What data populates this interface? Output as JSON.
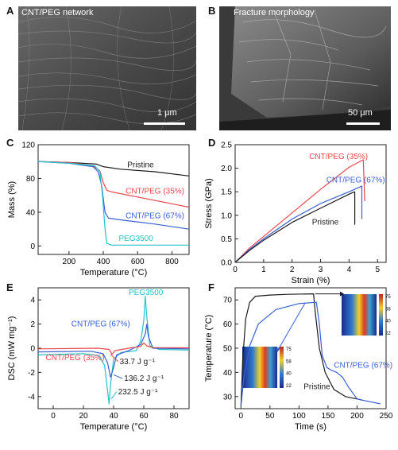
{
  "panels": {
    "A": {
      "letter": "A",
      "label": "CNT/PEG network",
      "scale_label": "1 μm"
    },
    "B": {
      "letter": "B",
      "label": "Fracture morphology",
      "scale_label": "50 μm"
    },
    "C": {
      "letter": "C"
    },
    "D": {
      "letter": "D"
    },
    "E": {
      "letter": "E"
    },
    "F": {
      "letter": "F"
    }
  },
  "colors": {
    "pristine": "#1a1a1a",
    "cnt35": "#e8474f",
    "cnt67": "#3a5fd1",
    "peg": "#22c3c9"
  },
  "chart_data": [
    {
      "id": "C",
      "type": "line",
      "xlabel": "Temperature (°C)",
      "ylabel": "Mass (%)",
      "xlim": [
        20,
        900
      ],
      "ylim": [
        -10,
        120
      ],
      "xticks": [
        200,
        400,
        600,
        800
      ],
      "yticks": [
        0,
        40,
        80,
        120
      ],
      "series": [
        {
          "name": "Pristine",
          "color": "#1a1a1a",
          "points": [
            [
              20,
              100
            ],
            [
              200,
              99
            ],
            [
              360,
              97
            ],
            [
              400,
              94
            ],
            [
              500,
              91
            ],
            [
              700,
              88
            ],
            [
              900,
              83
            ]
          ]
        },
        {
          "name": "CNT/PEG (35%)",
          "color": "#e8474f",
          "points": [
            [
              20,
              100
            ],
            [
              200,
              99
            ],
            [
              340,
              95
            ],
            [
              380,
              89
            ],
            [
              400,
              75
            ],
            [
              420,
              66
            ],
            [
              450,
              64
            ],
            [
              600,
              58
            ],
            [
              800,
              50
            ],
            [
              900,
              46
            ]
          ]
        },
        {
          "name": "CNT/PEG (67%)",
          "color": "#3a5fd1",
          "points": [
            [
              20,
              100
            ],
            [
              200,
              98
            ],
            [
              340,
              94
            ],
            [
              370,
              88
            ],
            [
              390,
              72
            ],
            [
              410,
              40
            ],
            [
              430,
              33
            ],
            [
              500,
              31
            ],
            [
              700,
              26
            ],
            [
              900,
              20
            ]
          ]
        },
        {
          "name": "PEG3500",
          "color": "#22c3c9",
          "points": [
            [
              20,
              100
            ],
            [
              200,
              98
            ],
            [
              350,
              95
            ],
            [
              380,
              88
            ],
            [
              395,
              60
            ],
            [
              410,
              20
            ],
            [
              420,
              3
            ],
            [
              450,
              1
            ],
            [
              900,
              1
            ]
          ]
        }
      ],
      "annotations": [
        {
          "text": "Pristine",
          "color": "#1a1a1a",
          "x": 540,
          "y": 93
        },
        {
          "text": "CNT/PEG (35%)",
          "color": "#e8474f",
          "x": 530,
          "y": 62
        },
        {
          "text": "CNT/PEG (67%)",
          "color": "#3a5fd1",
          "x": 530,
          "y": 33
        },
        {
          "text": "PEG3500",
          "color": "#22c3c9",
          "x": 490,
          "y": 6
        }
      ]
    },
    {
      "id": "D",
      "type": "line",
      "xlabel": "Strain (%)",
      "ylabel": "Stress (GPa)",
      "xlim": [
        0,
        5.3
      ],
      "ylim": [
        0,
        2.5
      ],
      "xticks": [
        0,
        1,
        2,
        3,
        4,
        5
      ],
      "yticks": [
        0.0,
        0.5,
        1.0,
        1.5,
        2.0,
        2.5
      ],
      "tick_format": {
        "y": 1
      },
      "series": [
        {
          "name": "CNT/PEG (35%)",
          "color": "#e8474f",
          "points": [
            [
              0,
              0
            ],
            [
              0.5,
              0.3
            ],
            [
              1,
              0.55
            ],
            [
              2,
              1.05
            ],
            [
              3,
              1.55
            ],
            [
              4,
              2.02
            ],
            [
              4.5,
              2.18
            ],
            [
              4.55,
              1.3
            ]
          ]
        },
        {
          "name": "CNT/PEG (67%)",
          "color": "#3a5fd1",
          "points": [
            [
              0,
              0
            ],
            [
              0.5,
              0.27
            ],
            [
              1,
              0.5
            ],
            [
              2,
              0.92
            ],
            [
              3,
              1.25
            ],
            [
              4,
              1.5
            ],
            [
              4.45,
              1.62
            ],
            [
              4.45,
              0.92
            ]
          ]
        },
        {
          "name": "Pristine",
          "color": "#1a1a1a",
          "points": [
            [
              0,
              0
            ],
            [
              0.5,
              0.25
            ],
            [
              1,
              0.47
            ],
            [
              2,
              0.85
            ],
            [
              3,
              1.15
            ],
            [
              4,
              1.45
            ],
            [
              4.2,
              1.5
            ],
            [
              4.2,
              0.8
            ]
          ]
        }
      ],
      "annotations": [
        {
          "text": "CNT/PEG (35%)",
          "color": "#e8474f",
          "x": 2.6,
          "y": 2.2
        },
        {
          "text": "CNT/PEG (67%)",
          "color": "#3a5fd1",
          "x": 3.2,
          "y": 1.7
        },
        {
          "text": "Pristine",
          "color": "#1a1a1a",
          "x": 2.7,
          "y": 0.8
        }
      ]
    },
    {
      "id": "E",
      "type": "line",
      "xlabel": "Temperature (°C)",
      "ylabel": "DSC (mW mg⁻¹)",
      "xlim": [
        -10,
        90
      ],
      "ylim": [
        -5,
        5
      ],
      "xticks": [
        0,
        20,
        40,
        60,
        80
      ],
      "yticks": [
        -4,
        -2,
        0,
        2,
        4
      ],
      "series": [
        {
          "name": "PEG3500",
          "color": "#22c3c9",
          "points": [
            [
              -10,
              -0.55
            ],
            [
              20,
              -0.45
            ],
            [
              30,
              -0.6
            ],
            [
              34,
              -1.4
            ],
            [
              36,
              -3.5
            ],
            [
              37,
              -4.6
            ],
            [
              38,
              -3.0
            ],
            [
              40,
              -0.9
            ],
            [
              45,
              -0.35
            ],
            [
              55,
              -0.2
            ],
            [
              58,
              0.6
            ],
            [
              60,
              2.3
            ],
            [
              61,
              4.3
            ],
            [
              62,
              2.6
            ],
            [
              64,
              0.2
            ],
            [
              70,
              -0.1
            ],
            [
              90,
              -0.15
            ]
          ]
        },
        {
          "name": "CNT/PEG (67%)",
          "color": "#3a5fd1",
          "points": [
            [
              -10,
              -0.3
            ],
            [
              25,
              -0.25
            ],
            [
              33,
              -0.45
            ],
            [
              36,
              -1.2
            ],
            [
              38,
              -2.4
            ],
            [
              40,
              -1.6
            ],
            [
              42,
              -0.55
            ],
            [
              50,
              -0.2
            ],
            [
              58,
              0.3
            ],
            [
              61,
              1.2
            ],
            [
              62,
              2.0
            ],
            [
              63,
              1.0
            ],
            [
              66,
              0.0
            ],
            [
              90,
              -0.05
            ]
          ]
        },
        {
          "name": "CNT/PEG (35%)",
          "color": "#e8474f",
          "points": [
            [
              -10,
              -0.05
            ],
            [
              30,
              0.0
            ],
            [
              37,
              -0.1
            ],
            [
              39,
              -0.5
            ],
            [
              41,
              -0.2
            ],
            [
              50,
              0.0
            ],
            [
              58,
              0.15
            ],
            [
              60,
              0.45
            ],
            [
              62,
              0.2
            ],
            [
              66,
              0.05
            ],
            [
              90,
              0.03
            ]
          ]
        }
      ],
      "annotations": [
        {
          "text": "PEG3500",
          "color": "#22c3c9",
          "x": 50,
          "y": 4.4
        },
        {
          "text": "CNT/PEG (67%)",
          "color": "#3a5fd1",
          "x": 12,
          "y": 1.8
        },
        {
          "text": "CNT/PEG (35%)",
          "color": "#e8474f",
          "x": -5,
          "y": -1.0
        },
        {
          "text": "33.7 J g⁻¹",
          "color": "#1a1a1a",
          "x": 44,
          "y": -1.3
        },
        {
          "text": "136.2 J g⁻¹",
          "color": "#1a1a1a",
          "x": 47,
          "y": -2.7
        },
        {
          "text": "232.5 J g⁻¹",
          "color": "#1a1a1a",
          "x": 43,
          "y": -3.8
        }
      ]
    },
    {
      "id": "F",
      "type": "line",
      "xlabel": "Time (s)",
      "ylabel": "Temperature (°C)",
      "xlim": [
        -10,
        250
      ],
      "ylim": [
        25,
        75
      ],
      "xticks": [
        0,
        50,
        100,
        150,
        200,
        250
      ],
      "yticks": [
        30,
        40,
        50,
        60,
        70
      ],
      "series": [
        {
          "name": "Pristine",
          "color": "#1a1a1a",
          "points": [
            [
              0,
              26
            ],
            [
              3,
              45
            ],
            [
              8,
              62
            ],
            [
              15,
              69
            ],
            [
              25,
              71.5
            ],
            [
              50,
              72
            ],
            [
              80,
              72.3
            ],
            [
              125,
              72.5
            ],
            [
              128,
              65
            ],
            [
              135,
              50
            ],
            [
              145,
              40
            ],
            [
              160,
              33
            ],
            [
              180,
              30
            ],
            [
              200,
              29
            ],
            [
              210,
              28.5
            ]
          ]
        },
        {
          "name": "CNT/PEG (67%)",
          "color": "#3a5fd1",
          "points": [
            [
              0,
              26
            ],
            [
              5,
              38
            ],
            [
              15,
              51
            ],
            [
              30,
              60
            ],
            [
              60,
              66
            ],
            [
              100,
              68.5
            ],
            [
              130,
              69
            ],
            [
              135,
              60
            ],
            [
              140,
              47
            ],
            [
              148,
              42
            ],
            [
              155,
              41
            ],
            [
              165,
              40
            ],
            [
              175,
              38
            ],
            [
              185,
              34
            ],
            [
              200,
              29
            ],
            [
              220,
              28
            ],
            [
              240,
              27
            ]
          ]
        }
      ],
      "annotations": [
        {
          "text": "CNT/PEG (67%)",
          "color": "#3a5fd1",
          "x": 160,
          "y": 42
        },
        {
          "text": "Pristine",
          "color": "#1a1a1a",
          "x": 108,
          "y": 33
        }
      ],
      "insets": [
        {
          "ticks": [
            "75",
            "58",
            "40",
            "22"
          ]
        },
        {
          "ticks": [
            "75",
            "58",
            "40",
            "22"
          ]
        }
      ]
    }
  ]
}
